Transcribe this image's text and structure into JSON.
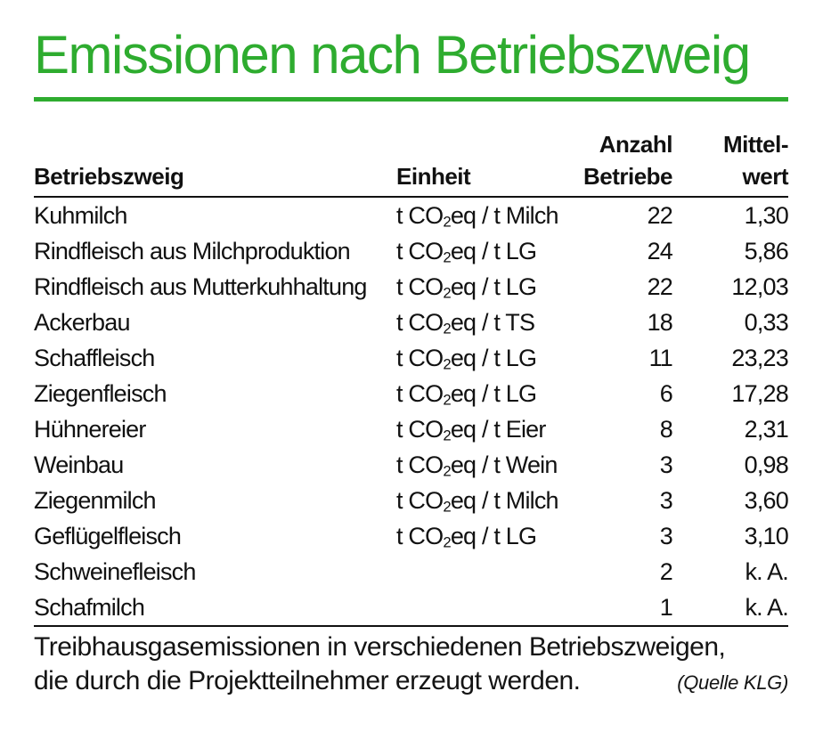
{
  "colors": {
    "accent_green": "#2EAC2F"
  },
  "page": {
    "title": "Emissionen nach Betriebszweig"
  },
  "table": {
    "headers": {
      "col1": "Betriebszweig",
      "col2": "Einheit",
      "col3_line1": "Anzahl",
      "col3_line2": "Betriebe",
      "col4_line1": "Mittel-",
      "col4_line2": "wert"
    },
    "rows": [
      {
        "betriebszweig": "Kuhmilch",
        "einheit_pre": "t CO",
        "einheit_sub": "2",
        "einheit_post": "eq / t Milch",
        "anzahl_betriebe": "22",
        "mittelwert": "1,30"
      },
      {
        "betriebszweig": "Rindfleisch aus Milchproduktion",
        "einheit_pre": "t CO",
        "einheit_sub": "2",
        "einheit_post": "eq / t LG",
        "anzahl_betriebe": "24",
        "mittelwert": "5,86"
      },
      {
        "betriebszweig": "Rindfleisch aus Mutterkuhhaltung",
        "einheit_pre": "t CO",
        "einheit_sub": "2",
        "einheit_post": "eq / t LG",
        "anzahl_betriebe": "22",
        "mittelwert": "12,03"
      },
      {
        "betriebszweig": "Ackerbau",
        "einheit_pre": "t CO",
        "einheit_sub": "2",
        "einheit_post": "eq / t TS",
        "anzahl_betriebe": "18",
        "mittelwert": "0,33"
      },
      {
        "betriebszweig": "Schaffleisch",
        "einheit_pre": "t CO",
        "einheit_sub": "2",
        "einheit_post": "eq / t LG",
        "anzahl_betriebe": "11",
        "mittelwert": "23,23"
      },
      {
        "betriebszweig": "Ziegenfleisch",
        "einheit_pre": "t CO",
        "einheit_sub": "2",
        "einheit_post": "eq / t LG",
        "anzahl_betriebe": "6",
        "mittelwert": "17,28"
      },
      {
        "betriebszweig": "Hühnereier",
        "einheit_pre": "t CO",
        "einheit_sub": "2",
        "einheit_post": "eq / t Eier",
        "anzahl_betriebe": "8",
        "mittelwert": "2,31"
      },
      {
        "betriebszweig": "Weinbau",
        "einheit_pre": "t CO",
        "einheit_sub": "2",
        "einheit_post": "eq / t Wein",
        "anzahl_betriebe": "3",
        "mittelwert": "0,98"
      },
      {
        "betriebszweig": "Ziegenmilch",
        "einheit_pre": "t CO",
        "einheit_sub": "2",
        "einheit_post": "eq / t Milch",
        "anzahl_betriebe": "3",
        "mittelwert": "3,60"
      },
      {
        "betriebszweig": "Geflügelfleisch",
        "einheit_pre": "t CO",
        "einheit_sub": "2",
        "einheit_post": "eq / t LG",
        "anzahl_betriebe": "3",
        "mittelwert": "3,10"
      },
      {
        "betriebszweig": "Schweinefleisch",
        "einheit_pre": "",
        "einheit_sub": "",
        "einheit_post": "",
        "anzahl_betriebe": "2",
        "mittelwert": "k. A."
      },
      {
        "betriebszweig": "Schafmilch",
        "einheit_pre": "",
        "einheit_sub": "",
        "einheit_post": "",
        "anzahl_betriebe": "1",
        "mittelwert": "k. A."
      }
    ]
  },
  "caption": {
    "line1": "Treibhausgasemissionen in verschiedenen Betriebszweigen,",
    "line2": "die durch die Projektteilnehmer erzeugt werden.",
    "source": "(Quelle KLG)"
  },
  "chart_data": {
    "type": "table",
    "title": "Emissionen nach Betriebszweig",
    "columns": [
      "Betriebszweig",
      "Einheit",
      "Anzahl Betriebe",
      "Mittelwert"
    ],
    "rows": [
      [
        "Kuhmilch",
        "t CO₂eq / t Milch",
        22,
        "1,30"
      ],
      [
        "Rindfleisch aus Milchproduktion",
        "t CO₂eq / t LG",
        24,
        "5,86"
      ],
      [
        "Rindfleisch aus Mutterkuhhaltung",
        "t CO₂eq / t LG",
        22,
        "12,03"
      ],
      [
        "Ackerbau",
        "t CO₂eq / t TS",
        18,
        "0,33"
      ],
      [
        "Schaffleisch",
        "t CO₂eq / t LG",
        11,
        "23,23"
      ],
      [
        "Ziegenfleisch",
        "t CO₂eq / t LG",
        6,
        "17,28"
      ],
      [
        "Hühnereier",
        "t CO₂eq / t Eier",
        8,
        "2,31"
      ],
      [
        "Weinbau",
        "t CO₂eq / t Wein",
        3,
        "0,98"
      ],
      [
        "Ziegenmilch",
        "t CO₂eq / t Milch",
        3,
        "3,60"
      ],
      [
        "Geflügelfleisch",
        "t CO₂eq / t LG",
        3,
        "3,10"
      ],
      [
        "Schweinefleisch",
        "",
        2,
        "k. A."
      ],
      [
        "Schafmilch",
        "",
        1,
        "k. A."
      ]
    ],
    "caption": "Treibhausgasemissionen in verschiedenen Betriebszweigen, die durch die Projektteilnehmer erzeugt werden.",
    "source": "(Quelle KLG)",
    "accent_color": "#2EAC2F"
  }
}
